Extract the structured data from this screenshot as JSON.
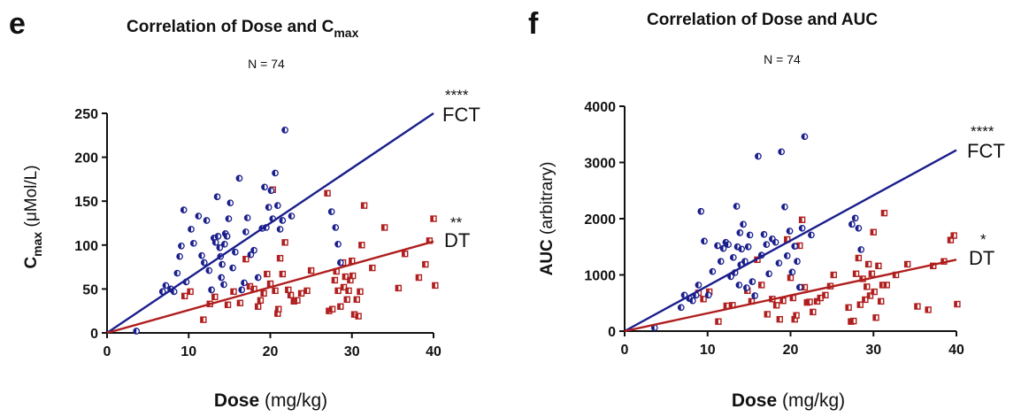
{
  "panels": [
    {
      "letter": "e",
      "title_main": "Correlation of Dose and C",
      "title_sub": "max",
      "n_text": "N = 74",
      "ylabel_main": "C",
      "ylabel_sub": "max",
      "ylabel_unit": " (μMol/L)",
      "xlabel_bold": "Dose",
      "xlabel_unit": " (mg/kg)",
      "fct_label": "FCT",
      "fct_sig": "****",
      "dt_label": "DT",
      "dt_sig": "**"
    },
    {
      "letter": "f",
      "title_main": "Correlation of Dose and AUC",
      "title_sub": "",
      "n_text": "N = 74",
      "ylabel_main": "AUC",
      "ylabel_sub": "",
      "ylabel_unit": " (arbitrary)",
      "xlabel_bold": "Dose",
      "xlabel_unit": " (mg/kg)",
      "fct_label": "FCT",
      "fct_sig": "****",
      "dt_label": "DT",
      "dt_sig": "*"
    }
  ],
  "colors": {
    "fct": "#1a1f8c",
    "dt": "#b01e1e"
  },
  "chart_data": [
    {
      "type": "scatter",
      "title": "Correlation of Dose and Cmax",
      "xlabel": "Dose (mg/kg)",
      "ylabel": "Cmax (μMol/L)",
      "xlim": [
        0,
        40
      ],
      "ylim": [
        0,
        250
      ],
      "xticks": [
        0,
        10,
        20,
        30,
        40
      ],
      "yticks": [
        0,
        50,
        100,
        150,
        200,
        250
      ],
      "series": [
        {
          "name": "FCT",
          "fit": {
            "slope": 6.25,
            "intercept": 0
          },
          "points": [
            [
              3.6,
              2
            ],
            [
              6.8,
              47
            ],
            [
              7.2,
              54
            ],
            [
              7.8,
              50
            ],
            [
              8.2,
              47
            ],
            [
              8.6,
              68
            ],
            [
              8.9,
              87
            ],
            [
              9.1,
              99
            ],
            [
              9.4,
              140
            ],
            [
              9.7,
              58
            ],
            [
              10.3,
              118
            ],
            [
              10.6,
              102
            ],
            [
              11.2,
              133
            ],
            [
              11.6,
              88
            ],
            [
              11.9,
              80
            ],
            [
              12.2,
              128
            ],
            [
              12.5,
              71
            ],
            [
              12.8,
              49
            ],
            [
              13.1,
              108
            ],
            [
              13.3,
              103
            ],
            [
              13.5,
              155
            ],
            [
              13.6,
              110
            ],
            [
              13.8,
              97
            ],
            [
              13.9,
              87
            ],
            [
              14.0,
              63
            ],
            [
              14.1,
              78
            ],
            [
              14.3,
              55
            ],
            [
              14.4,
              101
            ],
            [
              14.5,
              113
            ],
            [
              14.7,
              110
            ],
            [
              14.9,
              130
            ],
            [
              15.1,
              148
            ],
            [
              15.4,
              74
            ],
            [
              15.7,
              92
            ],
            [
              16.2,
              176
            ],
            [
              16.5,
              49
            ],
            [
              16.8,
              57
            ],
            [
              17.0,
              115
            ],
            [
              17.2,
              131
            ],
            [
              17.6,
              89
            ],
            [
              18.0,
              94
            ],
            [
              18.5,
              63
            ],
            [
              19.0,
              119
            ],
            [
              19.3,
              166
            ],
            [
              19.5,
              120
            ],
            [
              19.8,
              143
            ],
            [
              20.1,
              162
            ],
            [
              20.3,
              130
            ],
            [
              20.6,
              182
            ],
            [
              20.9,
              145
            ],
            [
              21.2,
              118
            ],
            [
              21.5,
              128
            ],
            [
              21.8,
              231
            ],
            [
              22.6,
              133
            ],
            [
              27.5,
              138
            ],
            [
              28.0,
              120
            ],
            [
              28.3,
              101
            ],
            [
              28.6,
              80
            ]
          ]
        },
        {
          "name": "DT",
          "fit": {
            "slope": 2.6,
            "intercept": 0
          },
          "points": [
            [
              9.5,
              42
            ],
            [
              10.2,
              47
            ],
            [
              11.8,
              15
            ],
            [
              12.6,
              33
            ],
            [
              13.2,
              41
            ],
            [
              14.8,
              32
            ],
            [
              15.5,
              47
            ],
            [
              16.3,
              34
            ],
            [
              17.0,
              84
            ],
            [
              17.5,
              53
            ],
            [
              18.0,
              50
            ],
            [
              18.5,
              30
            ],
            [
              18.8,
              37
            ],
            [
              19.2,
              45
            ],
            [
              19.6,
              67
            ],
            [
              20.0,
              56
            ],
            [
              20.3,
              163
            ],
            [
              20.6,
              48
            ],
            [
              20.9,
              22
            ],
            [
              21.0,
              27
            ],
            [
              21.2,
              85
            ],
            [
              21.5,
              67
            ],
            [
              21.8,
              103
            ],
            [
              22.2,
              49
            ],
            [
              22.5,
              43
            ],
            [
              22.9,
              36
            ],
            [
              23.3,
              37
            ],
            [
              23.8,
              45
            ],
            [
              24.5,
              48
            ],
            [
              25.0,
              71
            ],
            [
              27.0,
              159
            ],
            [
              27.2,
              25
            ],
            [
              27.6,
              27
            ],
            [
              27.9,
              60
            ],
            [
              28.1,
              70
            ],
            [
              28.3,
              48
            ],
            [
              28.6,
              30
            ],
            [
              28.9,
              80
            ],
            [
              29.0,
              52
            ],
            [
              29.2,
              64
            ],
            [
              29.4,
              38
            ],
            [
              29.6,
              48
            ],
            [
              29.8,
              60
            ],
            [
              30.0,
              82
            ],
            [
              30.1,
              65
            ],
            [
              30.3,
              21
            ],
            [
              30.6,
              38
            ],
            [
              30.8,
              19
            ],
            [
              31.0,
              47
            ],
            [
              31.2,
              100
            ],
            [
              31.5,
              145
            ],
            [
              32.5,
              74
            ],
            [
              34.0,
              120
            ],
            [
              35.7,
              51
            ],
            [
              36.5,
              90
            ],
            [
              38.2,
              63
            ],
            [
              39.0,
              78
            ],
            [
              39.5,
              105
            ],
            [
              40.0,
              130
            ],
            [
              40.2,
              54
            ]
          ]
        }
      ]
    },
    {
      "type": "scatter",
      "title": "Correlation of Dose and AUC",
      "xlabel": "Dose (mg/kg)",
      "ylabel": "AUC (arbitrary)",
      "xlim": [
        0,
        40
      ],
      "ylim": [
        0,
        4000
      ],
      "xticks": [
        0,
        10,
        20,
        30,
        40
      ],
      "yticks": [
        0,
        1000,
        2000,
        3000,
        4000
      ],
      "series": [
        {
          "name": "FCT",
          "fit": {
            "slope": 80.5,
            "intercept": 0
          },
          "points": [
            [
              3.6,
              60
            ],
            [
              6.8,
              420
            ],
            [
              7.2,
              640
            ],
            [
              7.8,
              580
            ],
            [
              8.2,
              540
            ],
            [
              8.6,
              640
            ],
            [
              8.9,
              820
            ],
            [
              9.2,
              2130
            ],
            [
              9.6,
              1600
            ],
            [
              10.1,
              640
            ],
            [
              10.6,
              1060
            ],
            [
              11.2,
              1520
            ],
            [
              11.6,
              1240
            ],
            [
              11.9,
              1470
            ],
            [
              12.2,
              1580
            ],
            [
              12.5,
              1540
            ],
            [
              12.8,
              970
            ],
            [
              13.1,
              1310
            ],
            [
              13.3,
              1040
            ],
            [
              13.5,
              2220
            ],
            [
              13.6,
              1500
            ],
            [
              13.8,
              820
            ],
            [
              13.9,
              1750
            ],
            [
              14.0,
              1180
            ],
            [
              14.1,
              1460
            ],
            [
              14.3,
              1900
            ],
            [
              14.5,
              1240
            ],
            [
              14.7,
              770
            ],
            [
              14.9,
              1500
            ],
            [
              15.1,
              1710
            ],
            [
              15.4,
              880
            ],
            [
              15.7,
              630
            ],
            [
              16.1,
              3110
            ],
            [
              16.5,
              1350
            ],
            [
              16.8,
              1720
            ],
            [
              17.1,
              1540
            ],
            [
              17.4,
              1020
            ],
            [
              17.8,
              1640
            ],
            [
              18.2,
              1580
            ],
            [
              18.6,
              1210
            ],
            [
              18.9,
              3190
            ],
            [
              19.3,
              2210
            ],
            [
              19.6,
              1340
            ],
            [
              19.9,
              1780
            ],
            [
              20.2,
              1050
            ],
            [
              20.5,
              1510
            ],
            [
              20.8,
              1240
            ],
            [
              21.1,
              780
            ],
            [
              21.4,
              1830
            ],
            [
              21.7,
              3460
            ],
            [
              22.5,
              1710
            ],
            [
              27.4,
              1900
            ],
            [
              27.8,
              2010
            ],
            [
              28.2,
              1830
            ],
            [
              28.5,
              1450
            ]
          ]
        },
        {
          "name": "DT",
          "fit": {
            "slope": 31.75,
            "intercept": 0
          },
          "points": [
            [
              8.9,
              680
            ],
            [
              9.5,
              570
            ],
            [
              10.2,
              700
            ],
            [
              11.3,
              170
            ],
            [
              12.3,
              450
            ],
            [
              13.0,
              460
            ],
            [
              14.8,
              720
            ],
            [
              15.3,
              530
            ],
            [
              16.0,
              1270
            ],
            [
              16.5,
              820
            ],
            [
              17.2,
              300
            ],
            [
              17.8,
              570
            ],
            [
              18.3,
              460
            ],
            [
              18.7,
              210
            ],
            [
              19.1,
              540
            ],
            [
              19.6,
              1630
            ],
            [
              20.0,
              950
            ],
            [
              20.3,
              590
            ],
            [
              20.5,
              210
            ],
            [
              20.7,
              280
            ],
            [
              21.1,
              1520
            ],
            [
              21.4,
              1980
            ],
            [
              21.7,
              780
            ],
            [
              22.0,
              510
            ],
            [
              22.3,
              520
            ],
            [
              22.7,
              340
            ],
            [
              23.2,
              530
            ],
            [
              23.6,
              590
            ],
            [
              24.2,
              640
            ],
            [
              24.8,
              800
            ],
            [
              25.2,
              1000
            ],
            [
              27.0,
              420
            ],
            [
              27.3,
              170
            ],
            [
              27.6,
              180
            ],
            [
              27.9,
              1020
            ],
            [
              28.2,
              1300
            ],
            [
              28.4,
              470
            ],
            [
              28.7,
              930
            ],
            [
              29.0,
              560
            ],
            [
              29.2,
              790
            ],
            [
              29.4,
              1190
            ],
            [
              29.6,
              630
            ],
            [
              29.8,
              1020
            ],
            [
              30.0,
              1760
            ],
            [
              30.1,
              700
            ],
            [
              30.3,
              240
            ],
            [
              30.6,
              1160
            ],
            [
              30.9,
              530
            ],
            [
              31.1,
              820
            ],
            [
              31.3,
              2100
            ],
            [
              31.6,
              820
            ],
            [
              32.7,
              1000
            ],
            [
              34.1,
              1190
            ],
            [
              35.3,
              440
            ],
            [
              36.6,
              380
            ],
            [
              37.2,
              1160
            ],
            [
              38.5,
              1240
            ],
            [
              39.3,
              1620
            ],
            [
              39.7,
              1700
            ],
            [
              40.1,
              480
            ]
          ]
        }
      ]
    }
  ]
}
